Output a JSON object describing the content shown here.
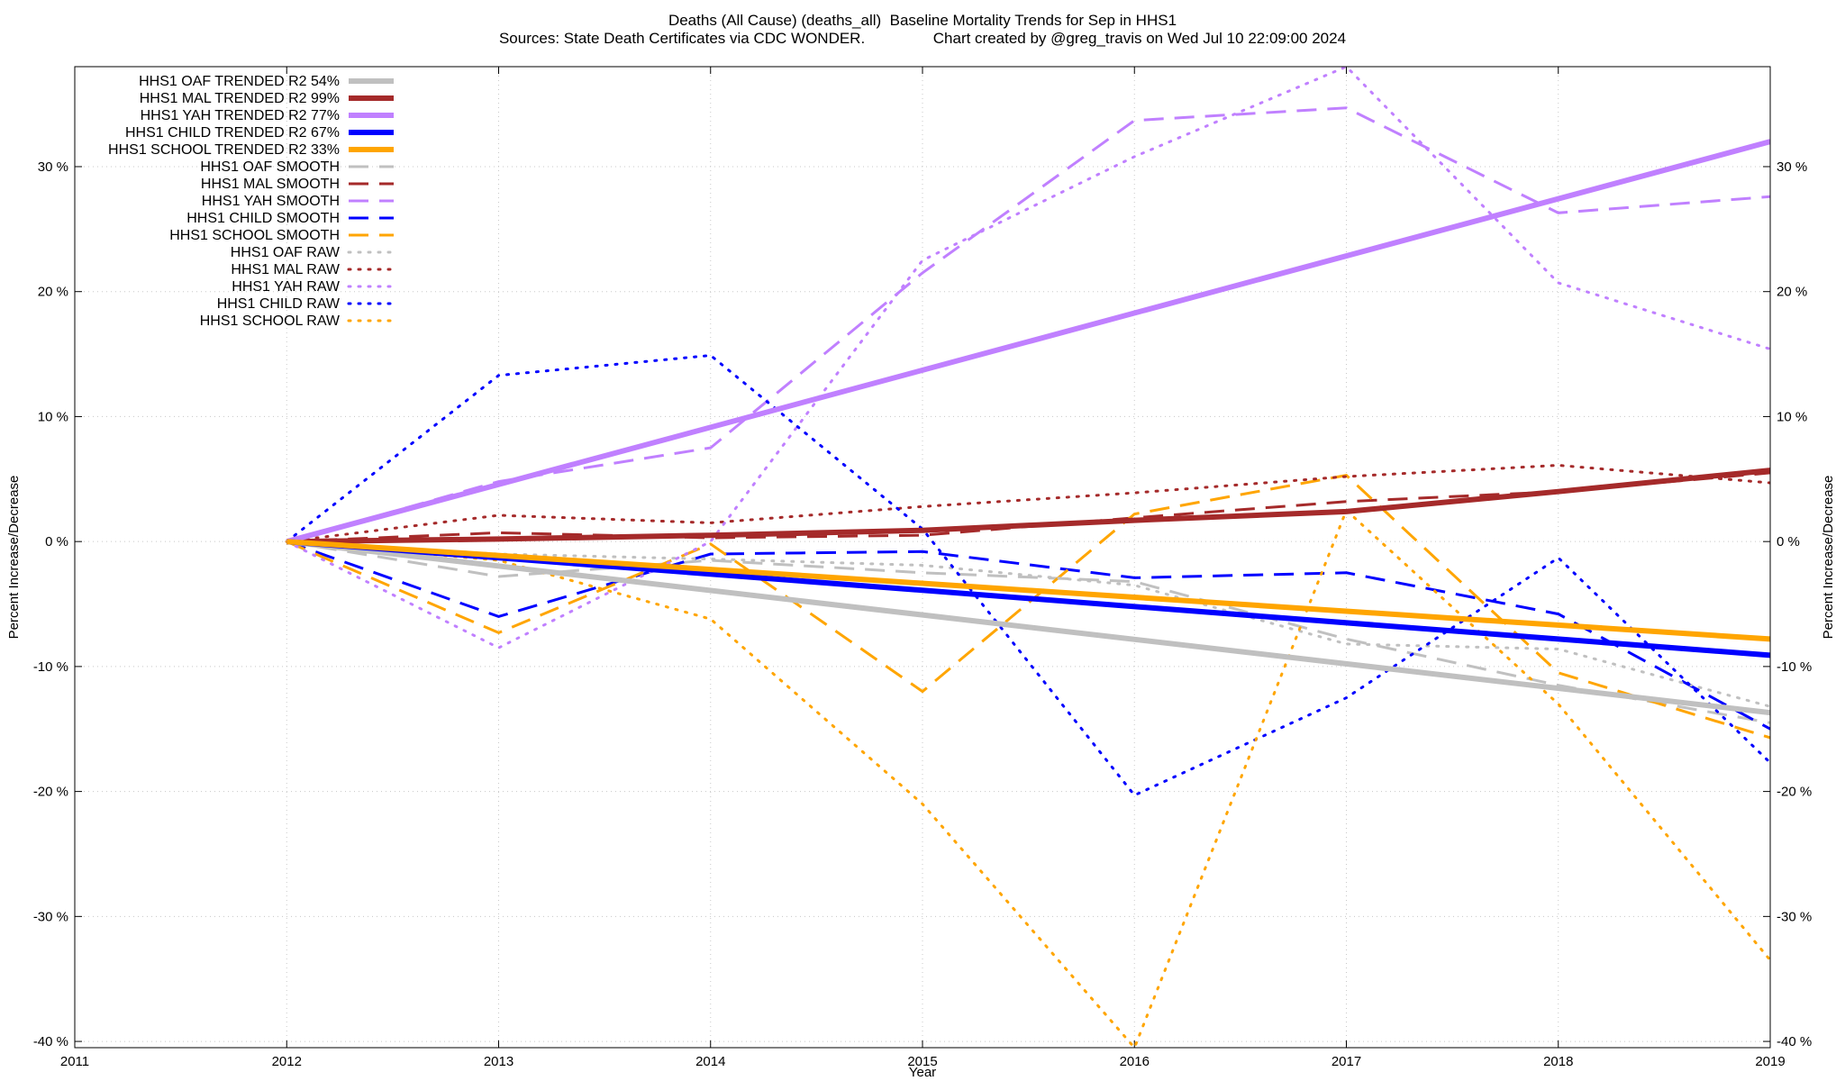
{
  "chart_data": {
    "type": "line",
    "title": "Deaths (All Cause) (deaths_all)  Baseline Mortality Trends for Sep in HHS1",
    "subtitle": "Sources: State Death Certificates via CDC WONDER.                Chart created by @greg_travis on Wed Jul 10 22:09:00 2024",
    "xlabel": "Year",
    "ylabel_left": "Percent Increase/Decrease",
    "ylabel_right": "Percent Increase/Decrease",
    "xlim": [
      2011,
      2019
    ],
    "ylim": [
      -40.5,
      38
    ],
    "xticks": [
      2011,
      2012,
      2013,
      2014,
      2015,
      2016,
      2017,
      2018,
      2019
    ],
    "xtick_labels": [
      "2011",
      "2012",
      "2013",
      "2014",
      "2015",
      "2016",
      "2017",
      "2018",
      "2019"
    ],
    "yticks": [
      -40,
      -30,
      -20,
      -10,
      0,
      10,
      20,
      30
    ],
    "ytick_labels": [
      "-40 %",
      "-30 %",
      "-20 %",
      "-10 %",
      "0 %",
      "10 %",
      "20 %",
      "30 %"
    ],
    "grid": true,
    "legend_position": "top-left",
    "series": [
      {
        "name": "HHS1 OAF TRENDED R2  54%",
        "style": "solid",
        "color": "#c0c0c0",
        "x": [
          2012,
          2019
        ],
        "y": [
          0,
          -13.7
        ]
      },
      {
        "name": "HHS1 MAL TRENDED R2  99%",
        "style": "solid",
        "color": "#a52a2a",
        "x": [
          2012,
          2013,
          2014,
          2015,
          2016,
          2017,
          2018,
          2019
        ],
        "y": [
          0,
          0.2,
          0.5,
          0.9,
          1.7,
          2.4,
          4.0,
          5.7
        ]
      },
      {
        "name": "HHS1 YAH TRENDED R2  77%",
        "style": "solid",
        "color": "#c080ff",
        "x": [
          2012,
          2019
        ],
        "y": [
          0,
          32.0
        ]
      },
      {
        "name": "HHS1 CHILD TRENDED R2  67%",
        "style": "solid",
        "color": "#0000ff",
        "x": [
          2012,
          2019
        ],
        "y": [
          0,
          -9.1
        ]
      },
      {
        "name": "HHS1 SCHOOL TRENDED R2  33%",
        "style": "solid",
        "color": "#ffa500",
        "x": [
          2012,
          2019
        ],
        "y": [
          0,
          -7.8
        ]
      },
      {
        "name": "HHS1 OAF SMOOTH",
        "style": "dash",
        "color": "#c0c0c0",
        "x": [
          2012,
          2013,
          2014,
          2015,
          2016,
          2017,
          2018,
          2019
        ],
        "y": [
          0,
          -2.8,
          -1.5,
          -2.5,
          -3.2,
          -7.8,
          -11.5,
          -14.5
        ]
      },
      {
        "name": "HHS1 MAL SMOOTH",
        "style": "dash",
        "color": "#a52a2a",
        "x": [
          2012,
          2013,
          2014,
          2015,
          2016,
          2017,
          2018,
          2019
        ],
        "y": [
          0,
          0.7,
          0.3,
          0.5,
          1.9,
          3.2,
          4.0,
          5.5
        ]
      },
      {
        "name": "HHS1 YAH SMOOTH",
        "style": "dash",
        "color": "#c080ff",
        "x": [
          2012,
          2013,
          2014,
          2015,
          2016,
          2017,
          2018,
          2019
        ],
        "y": [
          0,
          4.8,
          7.5,
          21.5,
          33.7,
          34.7,
          26.3,
          27.6
        ]
      },
      {
        "name": "HHS1 CHILD SMOOTH",
        "style": "dash",
        "color": "#0000ff",
        "x": [
          2012,
          2013,
          2014,
          2015,
          2016,
          2017,
          2018,
          2019
        ],
        "y": [
          0,
          -6.0,
          -1.0,
          -0.8,
          -2.9,
          -2.5,
          -5.8,
          -15.0
        ]
      },
      {
        "name": "HHS1 SCHOOL SMOOTH",
        "style": "dash",
        "color": "#ffa500",
        "x": [
          2012,
          2013,
          2014,
          2015,
          2016,
          2017,
          2018,
          2019
        ],
        "y": [
          0,
          -7.3,
          -0.2,
          -12.0,
          2.2,
          5.3,
          -10.5,
          -15.7
        ]
      },
      {
        "name": "HHS1 OAF RAW",
        "style": "dot",
        "color": "#c0c0c0",
        "x": [
          2012,
          2013,
          2014,
          2015,
          2016,
          2017,
          2018,
          2019
        ],
        "y": [
          0,
          -1.0,
          -1.4,
          -1.9,
          -3.5,
          -8.2,
          -8.6,
          -13.2
        ]
      },
      {
        "name": "HHS1 MAL RAW",
        "style": "dot",
        "color": "#a52a2a",
        "x": [
          2012,
          2013,
          2014,
          2015,
          2016,
          2017,
          2018,
          2019
        ],
        "y": [
          0,
          2.1,
          1.5,
          2.8,
          3.9,
          5.2,
          6.1,
          4.7
        ]
      },
      {
        "name": "HHS1 YAH RAW",
        "style": "dot",
        "color": "#c080ff",
        "x": [
          2012,
          2013,
          2014,
          2015,
          2016,
          2017,
          2018,
          2019
        ],
        "y": [
          0,
          -8.5,
          0,
          22.5,
          30.8,
          38.0,
          20.7,
          15.4
        ]
      },
      {
        "name": "HHS1 CHILD RAW",
        "style": "dot",
        "color": "#0000ff",
        "x": [
          2012,
          2013,
          2014,
          2015,
          2016,
          2017,
          2018,
          2019
        ],
        "y": [
          0,
          13.3,
          14.9,
          1.0,
          -20.3,
          -12.5,
          -1.3,
          -17.7
        ]
      },
      {
        "name": "HHS1 SCHOOL RAW",
        "style": "dot",
        "color": "#ffa500",
        "x": [
          2012,
          2013,
          2014,
          2015,
          2016,
          2017,
          2018,
          2019
        ],
        "y": [
          0,
          -1.5,
          -6.2,
          -21.0,
          -40.5,
          2.5,
          -13.0,
          -33.5
        ]
      }
    ]
  }
}
